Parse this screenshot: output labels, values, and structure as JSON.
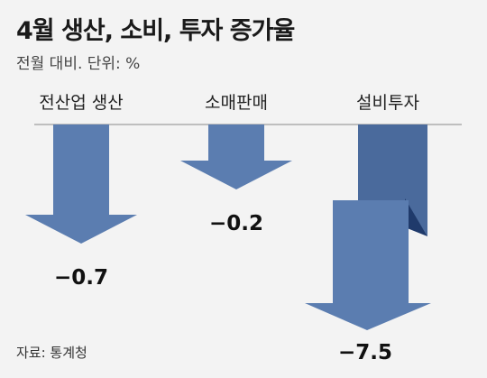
{
  "title": "4월 생산, 소비, 투자 증가율",
  "subtitle": "전월 대비. 단위: %",
  "source": "자료: 통계청",
  "colors": {
    "arrow": "#5b7db0",
    "arrow_dark": "#4a6a9c",
    "fold": "#1f3a6b",
    "axis": "#888888"
  },
  "chart_data": {
    "type": "bar",
    "categories": [
      "전산업 생산",
      "소매판매",
      "설비투자"
    ],
    "values": [
      -0.7,
      -0.2,
      -7.5
    ],
    "value_labels": [
      "−0.7",
      "−0.2",
      "−7.5"
    ],
    "title": "4월 생산, 소비, 투자 증가율",
    "subtitle": "전월 대비. 단위: %",
    "xlabel": "",
    "ylabel": "",
    "grid": false,
    "legend": "none"
  }
}
